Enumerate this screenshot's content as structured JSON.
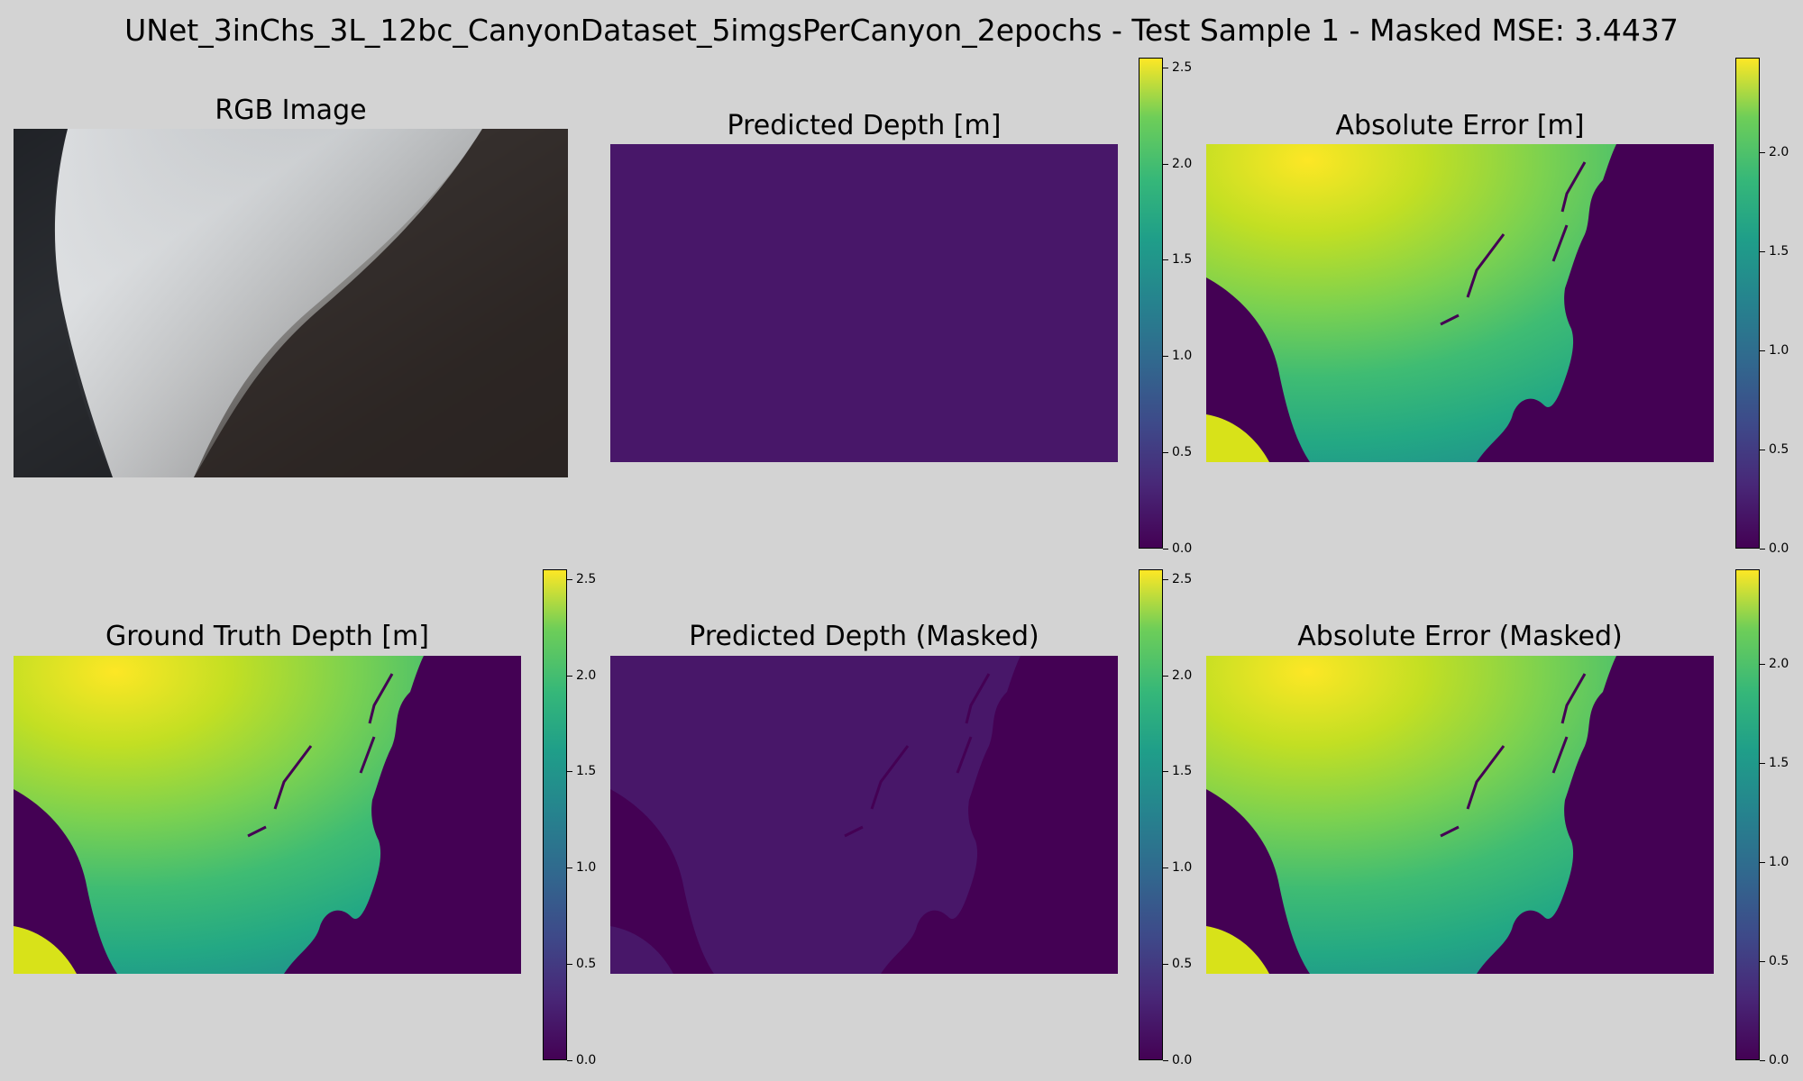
{
  "suptitle": "UNet_3inChs_3L_12bc_CanyonDataset_5imgsPerCanyon_2epochs - Test Sample 1 - Masked MSE: 3.4437",
  "colormap": "viridis",
  "panels": [
    {
      "id": "rgb",
      "title": "RGB Image",
      "kind": "rgb",
      "colorbar": null
    },
    {
      "id": "pred",
      "title": "Predicted Depth [m]",
      "kind": "uniform",
      "colorbar": {
        "min": 0.0,
        "max": 2.55,
        "ticks": [
          "0.0",
          "0.5",
          "1.0",
          "1.5",
          "2.0",
          "2.5"
        ]
      }
    },
    {
      "id": "err",
      "title": "Absolute Error [m]",
      "kind": "depthmap",
      "colorbar": {
        "min": 0.0,
        "max": 2.48,
        "ticks": [
          "0.0",
          "0.5",
          "1.0",
          "1.5",
          "2.0"
        ]
      }
    },
    {
      "id": "gt",
      "title": "Ground Truth Depth [m]",
      "kind": "depthmap",
      "colorbar": {
        "min": 0.0,
        "max": 2.55,
        "ticks": [
          "0.0",
          "0.5",
          "1.0",
          "1.5",
          "2.0",
          "2.5"
        ]
      }
    },
    {
      "id": "predm",
      "title": "Predicted Depth (Masked)",
      "kind": "masked-uniform",
      "colorbar": {
        "min": 0.0,
        "max": 2.55,
        "ticks": [
          "0.0",
          "0.5",
          "1.0",
          "1.5",
          "2.0",
          "2.5"
        ]
      }
    },
    {
      "id": "errm",
      "title": "Absolute Error (Masked)",
      "kind": "depthmap",
      "colorbar": {
        "min": 0.0,
        "max": 2.48,
        "ticks": [
          "0.0",
          "0.5",
          "1.0",
          "1.5",
          "2.0"
        ]
      }
    }
  ],
  "chart_data": {
    "type": "heatmap",
    "title": "UNet_3inChs_3L_12bc_CanyonDataset_5imgsPerCanyon_2epochs - Test Sample 1 - Masked MSE: 3.4437",
    "masked_mse": 3.4437,
    "subplots": [
      {
        "title": "RGB Image"
      },
      {
        "title": "Predicted Depth [m]",
        "approx_value_m": 0.1,
        "colorbar_range": [
          0.0,
          2.55
        ]
      },
      {
        "title": "Absolute Error [m]",
        "approx_value_range_m": [
          0.0,
          2.45
        ],
        "colorbar_range": [
          0.0,
          2.48
        ]
      },
      {
        "title": "Ground Truth Depth [m]",
        "approx_value_range_m": [
          0.0,
          2.5
        ],
        "colorbar_range": [
          0.0,
          2.55
        ]
      },
      {
        "title": "Predicted Depth (Masked)",
        "approx_value_m": 0.1,
        "colorbar_range": [
          0.0,
          2.55
        ]
      },
      {
        "title": "Absolute Error (Masked)",
        "approx_value_range_m": [
          0.0,
          2.45
        ],
        "colorbar_range": [
          0.0,
          2.48
        ]
      }
    ]
  }
}
